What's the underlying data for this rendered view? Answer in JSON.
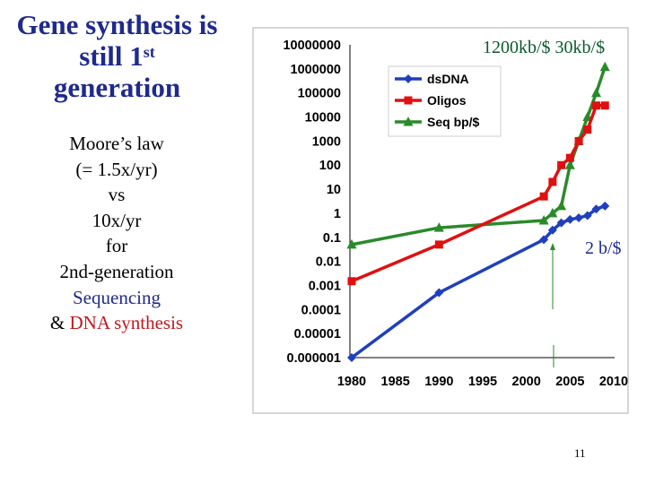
{
  "slide": {
    "title_main": "Gene synthesis is still 1",
    "title_sup": "st",
    "title_end": "generation",
    "lines": [
      "Moore’s law",
      "(= 1.5x/yr)",
      "vs",
      "10x/yr",
      "for",
      "2nd-generation"
    ],
    "seq_word": "Sequencing",
    "amp_word": "&",
    "dna_word": "DNA synthesis",
    "note_top": "1200kb/$  30kb/$",
    "note_mid": "2 b/$",
    "page_number": "11"
  },
  "chart_data": {
    "type": "line",
    "yscale": "log",
    "ylim": [
      1e-06,
      10000000
    ],
    "xlim": [
      1980,
      2010
    ],
    "y_ticks": [
      "10000000",
      "1000000",
      "100000",
      "10000",
      "1000",
      "100",
      "10",
      "1",
      "0.1",
      "0.01",
      "0.001",
      "0.0001",
      "0.00001",
      "0.000001"
    ],
    "x_ticks": [
      "1980",
      "1985",
      "1990",
      "1995",
      "2000",
      "2005",
      "2010"
    ],
    "legend_position": "top-left",
    "grid": false,
    "series": [
      {
        "name": "dsDNA",
        "color": "#1f3fbf",
        "marker": "diamond",
        "x": [
          1980,
          1990,
          2002,
          2003,
          2004,
          2005,
          2006,
          2007,
          2008,
          2009
        ],
        "y": [
          1e-06,
          0.0005,
          0.08,
          0.2,
          0.4,
          0.55,
          0.65,
          0.8,
          1.5,
          2
        ]
      },
      {
        "name": "Oligos",
        "color": "#e01010",
        "marker": "square",
        "x": [
          1980,
          1990,
          2002,
          2003,
          2004,
          2005,
          2006,
          2007,
          2008,
          2009
        ],
        "y": [
          0.0015,
          0.05,
          5,
          20,
          100,
          200,
          1000,
          3000,
          30000,
          30000
        ]
      },
      {
        "name": "Seq bp/$",
        "color": "#2a8a2a",
        "marker": "triangle",
        "x": [
          1980,
          1990,
          2002,
          2003,
          2004,
          2005,
          2006,
          2007,
          2008,
          2009
        ],
        "y": [
          0.05,
          0.25,
          0.5,
          1,
          2,
          100,
          1000,
          10000,
          100000,
          1200000
        ]
      }
    ]
  }
}
